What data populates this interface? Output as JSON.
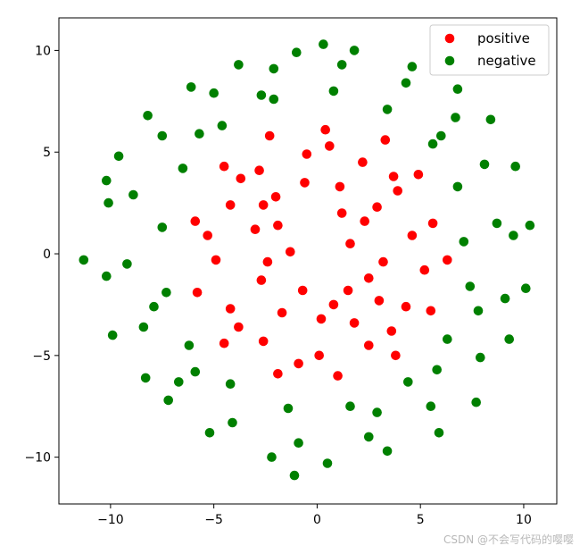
{
  "chart_data": {
    "type": "scatter",
    "title": "",
    "xlabel": "",
    "ylabel": "",
    "xlim": [
      -12.5,
      11.6
    ],
    "ylim": [
      -12.3,
      11.6
    ],
    "xticks": [
      -10,
      -5,
      0,
      5,
      10
    ],
    "yticks": [
      -10,
      -5,
      0,
      5,
      10
    ],
    "xtick_labels": [
      "−10",
      "−5",
      "0",
      "5",
      "10"
    ],
    "ytick_labels": [
      "−10",
      "−5",
      "0",
      "5",
      "10"
    ],
    "grid": false,
    "legend_position": "top-right",
    "series": [
      {
        "name": "positive",
        "color": "#ff0000",
        "points": [
          [
            1.6,
            0.5
          ],
          [
            2.3,
            1.6
          ],
          [
            3.2,
            -0.4
          ],
          [
            1.1,
            3.3
          ],
          [
            -0.6,
            3.5
          ],
          [
            -2.0,
            2.8
          ],
          [
            -3.0,
            1.2
          ],
          [
            -2.7,
            -1.3
          ],
          [
            -1.7,
            -2.9
          ],
          [
            0.2,
            -3.2
          ],
          [
            1.8,
            -3.4
          ],
          [
            3.0,
            -2.3
          ],
          [
            4.6,
            0.9
          ],
          [
            3.9,
            3.1
          ],
          [
            2.2,
            4.5
          ],
          [
            -0.5,
            4.9
          ],
          [
            -2.8,
            4.1
          ],
          [
            -4.2,
            2.4
          ],
          [
            -4.9,
            -0.3
          ],
          [
            -4.2,
            -2.7
          ],
          [
            -2.6,
            -4.3
          ],
          [
            0.1,
            -5.0
          ],
          [
            2.5,
            -4.5
          ],
          [
            4.3,
            -2.6
          ],
          [
            5.6,
            1.5
          ],
          [
            4.9,
            3.9
          ],
          [
            3.3,
            5.6
          ],
          [
            0.4,
            6.1
          ],
          [
            -2.3,
            5.8
          ],
          [
            -4.5,
            4.3
          ],
          [
            -5.9,
            1.6
          ],
          [
            -5.8,
            -1.9
          ],
          [
            -4.5,
            -4.4
          ],
          [
            -1.9,
            -5.9
          ],
          [
            1.0,
            -6.0
          ],
          [
            3.8,
            -5.0
          ],
          [
            5.5,
            -2.8
          ],
          [
            6.3,
            -0.3
          ],
          [
            -1.3,
            0.1
          ],
          [
            1.5,
            -1.8
          ],
          [
            -0.7,
            -1.8
          ],
          [
            1.2,
            2.0
          ],
          [
            -1.9,
            1.4
          ],
          [
            2.5,
            -1.2
          ],
          [
            -2.4,
            -0.4
          ],
          [
            0.8,
            -2.5
          ],
          [
            5.2,
            -0.8
          ],
          [
            -5.3,
            0.9
          ],
          [
            0.6,
            5.3
          ],
          [
            -0.9,
            -5.4
          ],
          [
            3.6,
            -3.8
          ],
          [
            -3.7,
            3.7
          ],
          [
            3.7,
            3.8
          ],
          [
            -3.8,
            -3.6
          ],
          [
            2.9,
            2.3
          ],
          [
            -2.6,
            2.4
          ]
        ]
      },
      {
        "name": "negative",
        "color": "#008000",
        "points": [
          [
            7.1,
            0.6
          ],
          [
            6.8,
            3.3
          ],
          [
            5.6,
            5.4
          ],
          [
            3.4,
            7.1
          ],
          [
            0.8,
            8.0
          ],
          [
            -2.1,
            7.6
          ],
          [
            -4.6,
            6.3
          ],
          [
            -6.5,
            4.2
          ],
          [
            -7.5,
            1.3
          ],
          [
            -7.3,
            -1.9
          ],
          [
            -6.2,
            -4.5
          ],
          [
            -4.2,
            -6.4
          ],
          [
            -1.4,
            -7.6
          ],
          [
            1.6,
            -7.5
          ],
          [
            4.4,
            -6.3
          ],
          [
            6.3,
            -4.2
          ],
          [
            7.4,
            -1.6
          ],
          [
            8.7,
            1.5
          ],
          [
            8.1,
            4.4
          ],
          [
            6.7,
            6.7
          ],
          [
            4.3,
            8.4
          ],
          [
            1.2,
            9.3
          ],
          [
            -2.1,
            9.1
          ],
          [
            -5.0,
            7.9
          ],
          [
            -7.5,
            5.8
          ],
          [
            -8.9,
            2.9
          ],
          [
            -9.2,
            -0.5
          ],
          [
            -8.4,
            -3.6
          ],
          [
            -6.7,
            -6.3
          ],
          [
            -4.1,
            -8.3
          ],
          [
            -0.9,
            -9.3
          ],
          [
            2.5,
            -9.0
          ],
          [
            5.5,
            -7.5
          ],
          [
            7.9,
            -5.1
          ],
          [
            9.1,
            -2.2
          ],
          [
            9.5,
            0.9
          ],
          [
            -10.1,
            2.5
          ],
          [
            -10.2,
            -1.1
          ],
          [
            -9.9,
            -4.0
          ],
          [
            -8.3,
            -6.1
          ],
          [
            -7.2,
            -7.2
          ],
          [
            -5.2,
            -8.8
          ],
          [
            -2.2,
            -10.0
          ],
          [
            0.5,
            -10.3
          ],
          [
            3.4,
            -9.7
          ],
          [
            5.9,
            -8.8
          ],
          [
            7.7,
            -7.3
          ],
          [
            9.3,
            -4.2
          ],
          [
            10.1,
            -1.7
          ],
          [
            10.3,
            1.4
          ],
          [
            9.6,
            4.3
          ],
          [
            8.4,
            6.6
          ],
          [
            6.8,
            8.1
          ],
          [
            4.6,
            9.2
          ],
          [
            1.8,
            10.0
          ],
          [
            -1.0,
            9.9
          ],
          [
            -3.8,
            9.3
          ],
          [
            -6.1,
            8.2
          ],
          [
            -8.2,
            6.8
          ],
          [
            -9.6,
            4.8
          ],
          [
            -11.3,
            -0.3
          ],
          [
            -10.2,
            3.6
          ],
          [
            -1.1,
            -10.9
          ],
          [
            0.3,
            10.3
          ],
          [
            7.8,
            -2.8
          ],
          [
            -7.9,
            -2.6
          ],
          [
            -2.7,
            7.8
          ],
          [
            2.9,
            -7.8
          ],
          [
            5.8,
            -5.7
          ],
          [
            -5.7,
            5.9
          ],
          [
            6.0,
            5.8
          ],
          [
            -5.9,
            -5.8
          ]
        ]
      }
    ]
  },
  "watermark": "CSDN @不会写代码的嘤嘤"
}
